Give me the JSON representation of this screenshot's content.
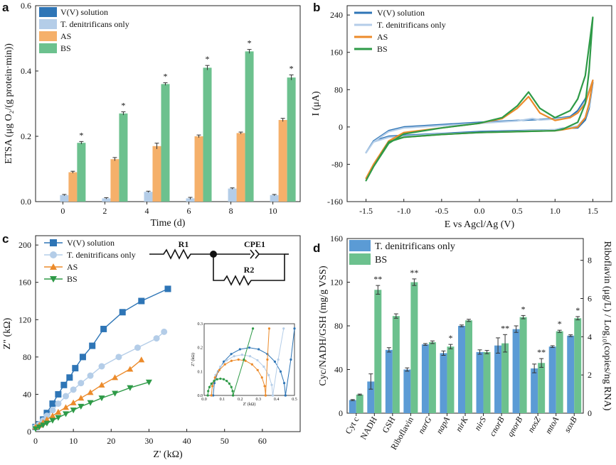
{
  "panels": {
    "a": "a",
    "b": "b",
    "c": "c",
    "d": "d"
  },
  "chart_data": [
    {
      "panel": "a",
      "type": "bar",
      "xlabel": "Time (d)",
      "ylabel": "ETSA (μg O₂/(g protein·min))",
      "categories": [
        "0",
        "2",
        "4",
        "6",
        "8",
        "10"
      ],
      "ylim": [
        0,
        0.6
      ],
      "yticks": [
        "0.0",
        "0.2",
        "0.4",
        "0.6"
      ],
      "legend_position": "top-left",
      "series": [
        {
          "name": "V(V) solution",
          "color": "#2e75b6",
          "values": [
            0,
            0,
            0,
            0,
            0,
            0
          ],
          "errors": [
            0,
            0,
            0,
            0,
            0,
            0
          ]
        },
        {
          "name": "T. denitrificans only",
          "color": "#b4cde8",
          "values": [
            0.02,
            0.01,
            0.03,
            0.01,
            0.04,
            0.02
          ],
          "errors": [
            0.002,
            0.002,
            0.002,
            0.003,
            0.002,
            0.002
          ]
        },
        {
          "name": "AS",
          "color": "#f5b06a",
          "values": [
            0.09,
            0.13,
            0.17,
            0.2,
            0.21,
            0.25
          ],
          "errors": [
            0.003,
            0.005,
            0.009,
            0.004,
            0.003,
            0.005
          ]
        },
        {
          "name": "BS",
          "color": "#6cc18e",
          "values": [
            0.18,
            0.27,
            0.36,
            0.41,
            0.46,
            0.38
          ],
          "errors": [
            0.004,
            0.005,
            0.004,
            0.007,
            0.006,
            0.008
          ]
        }
      ],
      "annotations": [
        "*",
        "*",
        "*",
        "*",
        "*",
        "*"
      ]
    },
    {
      "panel": "b",
      "type": "line",
      "xlabel": "E vs Agcl/Ag (V)",
      "ylabel": "I (μA)",
      "xlim": [
        -1.75,
        1.75
      ],
      "ylim": [
        -160,
        260
      ],
      "xticks": [
        "-1.5",
        "-1.0",
        "-0.5",
        "0.0",
        "0.5",
        "1.0",
        "1.5"
      ],
      "yticks": [
        "-160",
        "-80",
        "0",
        "80",
        "160",
        "240"
      ],
      "legend_position": "top-left",
      "series": [
        {
          "name": "V(V) solution",
          "color": "#2e75b6",
          "upper": [
            [
              -1.5,
              -55
            ],
            [
              -1.4,
              -30
            ],
            [
              -1.2,
              -8
            ],
            [
              -1.0,
              0
            ],
            [
              -0.5,
              5
            ],
            [
              0,
              10
            ],
            [
              0.5,
              14
            ],
            [
              0.8,
              16
            ],
            [
              1.0,
              18
            ],
            [
              1.2,
              22
            ],
            [
              1.3,
              35
            ],
            [
              1.4,
              60
            ],
            [
              1.5,
              95
            ]
          ],
          "lower": [
            [
              1.5,
              95
            ],
            [
              1.45,
              40
            ],
            [
              1.4,
              15
            ],
            [
              1.3,
              -2
            ],
            [
              1.1,
              -3
            ],
            [
              1.0,
              -6
            ],
            [
              0.5,
              -8
            ],
            [
              0,
              -10
            ],
            [
              -0.5,
              -14
            ],
            [
              -1.0,
              -18
            ],
            [
              -1.2,
              -20
            ],
            [
              -1.4,
              -30
            ],
            [
              -1.5,
              -55
            ]
          ]
        },
        {
          "name": "T. denitrificans only",
          "color": "#b4cde8",
          "upper": [
            [
              -1.5,
              -55
            ],
            [
              -1.4,
              -32
            ],
            [
              -1.2,
              -10
            ],
            [
              -1.0,
              -2
            ],
            [
              -0.5,
              3
            ],
            [
              0,
              8
            ],
            [
              0.5,
              13
            ],
            [
              0.7,
              18
            ],
            [
              0.8,
              15
            ],
            [
              1.0,
              17
            ],
            [
              1.2,
              20
            ],
            [
              1.3,
              30
            ],
            [
              1.4,
              55
            ],
            [
              1.5,
              100
            ]
          ],
          "lower": [
            [
              1.5,
              100
            ],
            [
              1.45,
              45
            ],
            [
              1.4,
              20
            ],
            [
              1.3,
              2
            ],
            [
              1.1,
              -4
            ],
            [
              1.0,
              -6
            ],
            [
              0.5,
              -9
            ],
            [
              0,
              -12
            ],
            [
              -0.5,
              -15
            ],
            [
              -1.0,
              -20
            ],
            [
              -1.2,
              -22
            ],
            [
              -1.4,
              -32
            ],
            [
              -1.5,
              -55
            ]
          ]
        },
        {
          "name": "AS",
          "color": "#ec8b2b",
          "upper": [
            [
              -1.5,
              -110
            ],
            [
              -1.4,
              -80
            ],
            [
              -1.2,
              -30
            ],
            [
              -1.0,
              -12
            ],
            [
              -0.5,
              -2
            ],
            [
              0,
              8
            ],
            [
              0.3,
              18
            ],
            [
              0.5,
              40
            ],
            [
              0.65,
              65
            ],
            [
              0.8,
              30
            ],
            [
              1.0,
              14
            ],
            [
              1.2,
              20
            ],
            [
              1.3,
              30
            ],
            [
              1.4,
              50
            ],
            [
              1.5,
              100
            ]
          ],
          "lower": [
            [
              1.5,
              100
            ],
            [
              1.45,
              50
            ],
            [
              1.4,
              20
            ],
            [
              1.3,
              0
            ],
            [
              1.1,
              -6
            ],
            [
              1.0,
              -8
            ],
            [
              0.5,
              -10
            ],
            [
              0,
              -12
            ],
            [
              -0.5,
              -16
            ],
            [
              -1.0,
              -22
            ],
            [
              -1.2,
              -30
            ],
            [
              -1.4,
              -80
            ],
            [
              -1.5,
              -110
            ]
          ]
        },
        {
          "name": "BS",
          "color": "#2e9a47",
          "upper": [
            [
              -1.5,
              -115
            ],
            [
              -1.4,
              -85
            ],
            [
              -1.2,
              -35
            ],
            [
              -1.0,
              -15
            ],
            [
              -0.5,
              -2
            ],
            [
              0,
              8
            ],
            [
              0.3,
              20
            ],
            [
              0.5,
              45
            ],
            [
              0.65,
              75
            ],
            [
              0.8,
              40
            ],
            [
              1.0,
              20
            ],
            [
              1.2,
              35
            ],
            [
              1.3,
              60
            ],
            [
              1.4,
              110
            ],
            [
              1.5,
              235
            ]
          ],
          "lower": [
            [
              1.5,
              235
            ],
            [
              1.45,
              120
            ],
            [
              1.4,
              50
            ],
            [
              1.3,
              10
            ],
            [
              1.1,
              -5
            ],
            [
              1.0,
              -8
            ],
            [
              0.5,
              -10
            ],
            [
              0,
              -12
            ],
            [
              -0.5,
              -16
            ],
            [
              -1.0,
              -22
            ],
            [
              -1.2,
              -32
            ],
            [
              -1.4,
              -85
            ],
            [
              -1.5,
              -115
            ]
          ]
        }
      ]
    },
    {
      "panel": "c",
      "type": "line",
      "xlabel": "Z' (kΩ)",
      "ylabel": "Z\" (kΩ)",
      "xlim": [
        0,
        70
      ],
      "ylim": [
        0,
        210
      ],
      "xticks": [
        "0",
        "10",
        "20",
        "30",
        "40",
        "50",
        "60"
      ],
      "yticks": [
        "0",
        "40",
        "80",
        "120",
        "160",
        "200"
      ],
      "legend_position": "top-left",
      "series": [
        {
          "name": "V(V) solution",
          "color": "#2e75b6",
          "marker": "square",
          "points": [
            [
              0,
              5
            ],
            [
              1,
              8
            ],
            [
              2,
              13
            ],
            [
              3,
              20
            ],
            [
              4.5,
              30
            ],
            [
              6,
              40
            ],
            [
              7.5,
              50
            ],
            [
              9,
              58
            ],
            [
              10.5,
              68
            ],
            [
              12.5,
              80
            ],
            [
              15,
              92
            ],
            [
              18,
              110
            ],
            [
              23,
              128
            ],
            [
              28,
              140
            ],
            [
              35,
              153
            ]
          ]
        },
        {
          "name": "T. denitrificans only",
          "color": "#b4cde8",
          "marker": "circle",
          "points": [
            [
              0,
              5
            ],
            [
              1,
              8
            ],
            [
              2,
              12
            ],
            [
              3,
              17
            ],
            [
              4.5,
              23
            ],
            [
              6,
              30
            ],
            [
              8,
              38
            ],
            [
              10,
              45
            ],
            [
              12,
              52
            ],
            [
              14.5,
              60
            ],
            [
              17.5,
              70
            ],
            [
              22,
              80
            ],
            [
              27,
              90
            ],
            [
              32,
              100
            ],
            [
              34,
              107
            ]
          ]
        },
        {
          "name": "AS",
          "color": "#ec8b2b",
          "marker": "triangle-up",
          "points": [
            [
              0,
              5
            ],
            [
              1,
              7
            ],
            [
              2,
              10
            ],
            [
              3,
              13
            ],
            [
              4.5,
              17
            ],
            [
              6,
              21
            ],
            [
              8,
              26
            ],
            [
              10,
              31
            ],
            [
              12,
              36
            ],
            [
              14.5,
              42
            ],
            [
              17.5,
              50
            ],
            [
              21,
              58
            ],
            [
              25,
              67
            ],
            [
              28,
              77
            ]
          ]
        },
        {
          "name": "BS",
          "color": "#2e9a47",
          "marker": "triangle-down",
          "points": [
            [
              0,
              3
            ],
            [
              1,
              5
            ],
            [
              2,
              7
            ],
            [
              3,
              9
            ],
            [
              4.5,
              12
            ],
            [
              6,
              15
            ],
            [
              8,
              19
            ],
            [
              10,
              23
            ],
            [
              12,
              27
            ],
            [
              14.5,
              31
            ],
            [
              17.5,
              36
            ],
            [
              21,
              41
            ],
            [
              25,
              47
            ],
            [
              30,
              53
            ]
          ]
        }
      ],
      "circuit": {
        "r1": "R1",
        "r2": "R2",
        "cpe": "CPE1"
      },
      "inset": {
        "xlabel": "Z' (kΩ)",
        "ylabel": "Z'' (kΩ)",
        "xlim": [
          0,
          0.5
        ],
        "ylim": [
          0,
          0.3
        ],
        "xticks": [
          "0.0",
          "0.1",
          "0.2",
          "0.3",
          "0.4",
          "0.5"
        ],
        "yticks": [
          "0.0",
          "0.1",
          "0.2",
          "0.3"
        ],
        "series": [
          {
            "name": "V(V) solution",
            "color": "#2e75b6",
            "center": 0.25,
            "radius": 0.2,
            "tail": [
              [
                0.45,
                0
              ],
              [
                0.48,
                0.15
              ],
              [
                0.5,
                0.28
              ]
            ]
          },
          {
            "name": "T. denitrificans only",
            "color": "#b4cde8",
            "center": 0.21,
            "radius": 0.17,
            "tail": [
              [
                0.38,
                0
              ],
              [
                0.41,
                0.15
              ],
              [
                0.44,
                0.28
              ]
            ]
          },
          {
            "name": "AS",
            "color": "#ec8b2b",
            "center": 0.19,
            "radius": 0.15,
            "tail": [
              [
                0.34,
                0
              ],
              [
                0.35,
                0.15
              ],
              [
                0.36,
                0.28
              ]
            ]
          },
          {
            "name": "BS",
            "color": "#2e9a47",
            "center": 0.09,
            "radius": 0.07,
            "tail": [
              [
                0.16,
                0
              ],
              [
                0.22,
                0.15
              ],
              [
                0.27,
                0.28
              ]
            ]
          }
        ]
      }
    },
    {
      "panel": "d",
      "type": "bar",
      "ylabel": "Cyc/NADH/GSH (mg/g VSS)",
      "ylabel_right": "Riboflavin (μg/L) / Log₁₀(copies/ng RNA)",
      "categories": [
        "Cyt c",
        "NADH",
        "GSH",
        "Riboflavin",
        "narG",
        "napA",
        "nirK",
        "nirS",
        "cnorB",
        "qnorB",
        "nosZ",
        "mtoA",
        "soxB"
      ],
      "categories_italic": [
        false,
        false,
        false,
        false,
        true,
        true,
        true,
        true,
        true,
        true,
        true,
        true,
        true
      ],
      "ylim": [
        0,
        160
      ],
      "yticks": [
        "0",
        "40",
        "80",
        "120",
        "160"
      ],
      "ylim_right": [
        0,
        9.14
      ],
      "yticks_right": [
        "0",
        "2",
        "4",
        "6",
        "8"
      ],
      "legend_position": "top-left",
      "series": [
        {
          "name": "T. denitrificans only",
          "color": "#5b9bd5",
          "values": [
            12,
            29,
            58,
            40,
            63,
            55,
            80,
            56,
            62,
            77,
            41,
            61,
            71
          ],
          "errors": [
            0.5,
            7,
            2,
            1.5,
            0.8,
            2,
            0.8,
            2,
            7,
            3,
            4,
            0.8,
            0.8
          ]
        },
        {
          "name": "BS",
          "color": "#6cc18e",
          "values": [
            17,
            113,
            89,
            120,
            65,
            61,
            85,
            56,
            64,
            88,
            46,
            75,
            87
          ],
          "errors": [
            0.5,
            4,
            2,
            3,
            1.2,
            2,
            1,
            1.5,
            8,
            1.5,
            4,
            1,
            1.5
          ]
        }
      ],
      "annotations": [
        "",
        "**",
        "",
        "**",
        "",
        "*",
        "",
        "",
        "**",
        "*",
        "**",
        "*",
        "*"
      ]
    }
  ]
}
